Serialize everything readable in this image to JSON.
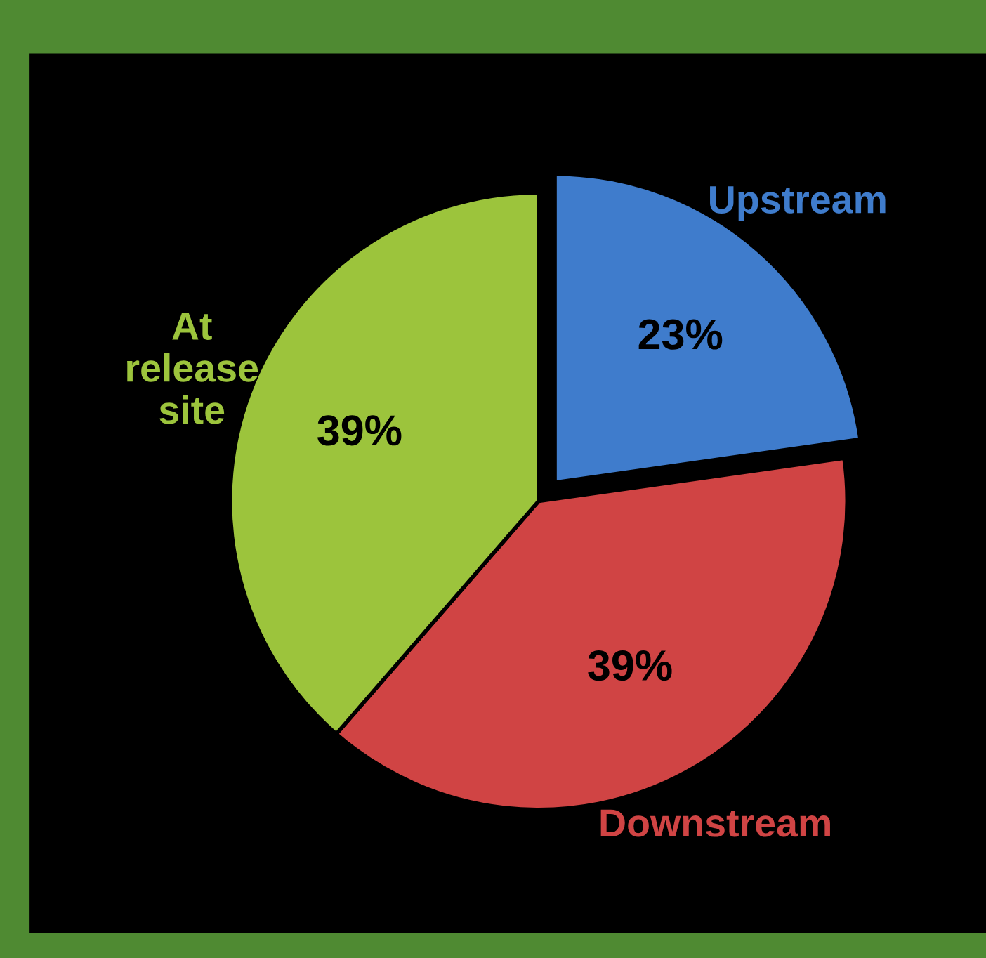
{
  "chart_data": {
    "type": "pie",
    "categories": [
      "Upstream",
      "Downstream",
      "At\nrelease\nsite"
    ],
    "values": [
      23,
      39,
      39
    ],
    "colors": [
      "#3f7ccc",
      "#d04444",
      "#9cc43c"
    ],
    "value_labels": [
      "23%",
      "39%",
      "39%"
    ],
    "legend": false
  }
}
